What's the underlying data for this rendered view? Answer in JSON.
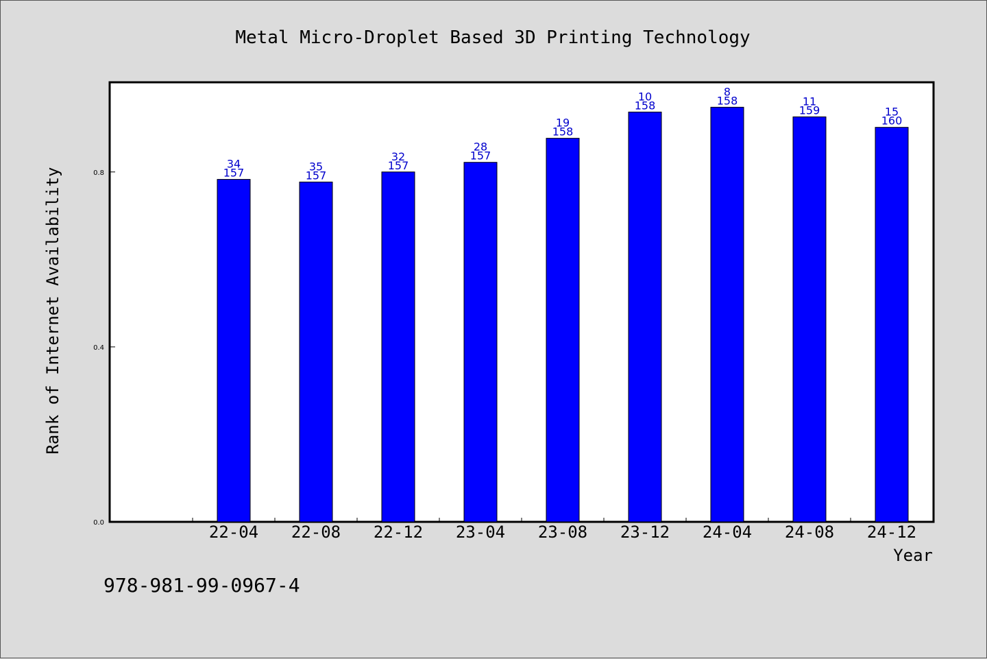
{
  "chart_data": {
    "type": "bar",
    "title": "Metal Micro-Droplet Based 3D Printing Technology",
    "xlabel": "Year",
    "ylabel": "Rank of Internet Availability",
    "categories": [
      "22-04",
      "22-08",
      "22-12",
      "23-04",
      "23-08",
      "23-12",
      "24-04",
      "24-08",
      "24-12"
    ],
    "values": [
      0.783,
      0.777,
      0.8,
      0.822,
      0.877,
      0.937,
      0.948,
      0.926,
      0.902
    ],
    "rank_labels": [
      "34",
      "35",
      "32",
      "28",
      "19",
      "10",
      "8",
      "11",
      "15"
    ],
    "total_labels": [
      "157",
      "157",
      "157",
      "157",
      "158",
      "158",
      "158",
      "159",
      "160"
    ],
    "yticks": [
      "0.0",
      "0.4",
      "0.8"
    ],
    "ytick_values": [
      0.0,
      0.4,
      0.8
    ],
    "ylim": [
      0,
      1.005
    ],
    "bar_color": "#0000ff",
    "label_color": "#0000cc",
    "grid": false
  },
  "footer": {
    "isbn": "978-981-99-0967-4"
  }
}
